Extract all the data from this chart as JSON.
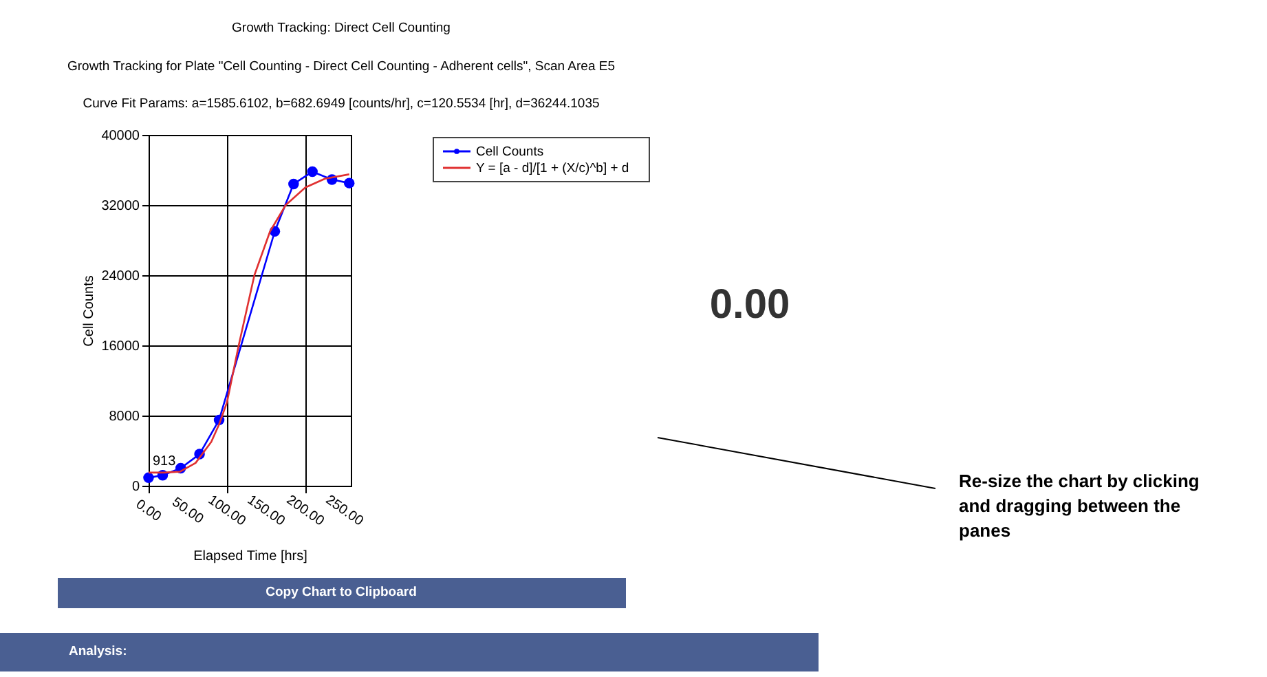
{
  "chart_data": {
    "type": "line",
    "title": "Growth Tracking: Direct Cell Counting",
    "subtitle": "Growth Tracking for Plate \"Cell Counting - Direct Cell Counting - Adherent cells\", Scan Area E5",
    "xlabel": "Elapsed Time [hrs]",
    "ylabel": "Cell Counts",
    "series": [
      {
        "name": "Cell Counts",
        "marker": "circle",
        "color": "#0000ff",
        "x": [
          0,
          18,
          41,
          65,
          90,
          161,
          185,
          209,
          234,
          256
        ],
        "values": [
          913,
          1200,
          2000,
          3600,
          7500,
          29000,
          34400,
          35800,
          34900,
          34500
        ]
      },
      {
        "name": "Y = [a - d]/[1 + (X/c)^b] + d",
        "color": "#e03030",
        "x": [
          0,
          20,
          40,
          60,
          80,
          90,
          100,
          115,
          135,
          155,
          175,
          200,
          225,
          256
        ],
        "values": [
          1500,
          1500,
          1600,
          2600,
          5000,
          7000,
          9500,
          16000,
          24000,
          29000,
          32000,
          34000,
          35000,
          35500
        ]
      }
    ],
    "xlim": [
      0,
      258
    ],
    "xticks": [
      {
        "value": 0,
        "label": "0.00"
      },
      {
        "value": 50,
        "label": "50.00"
      },
      {
        "value": 100,
        "label": "100.00"
      },
      {
        "value": 150,
        "label": "150.00"
      },
      {
        "value": 200,
        "label": "200.00"
      },
      {
        "value": 250,
        "label": "250.00"
      }
    ],
    "ylim": [
      0,
      40000
    ],
    "yticks": [
      0,
      8000,
      16000,
      24000,
      32000,
      40000
    ],
    "grid": true,
    "legend": "top right",
    "annotations": [
      {
        "text": "913",
        "x": 0,
        "y": 913
      },
      "Curve Fit Params: a=1585.6102, b=682.6949 [counts/hr], c=120.5534 [hr], d=36244.1035",
      "Copy Chart to Clipboard",
      "Analysis:",
      "0.00",
      "Re-size the chart by clicking\nand dragging between the\npanes"
    ]
  }
}
